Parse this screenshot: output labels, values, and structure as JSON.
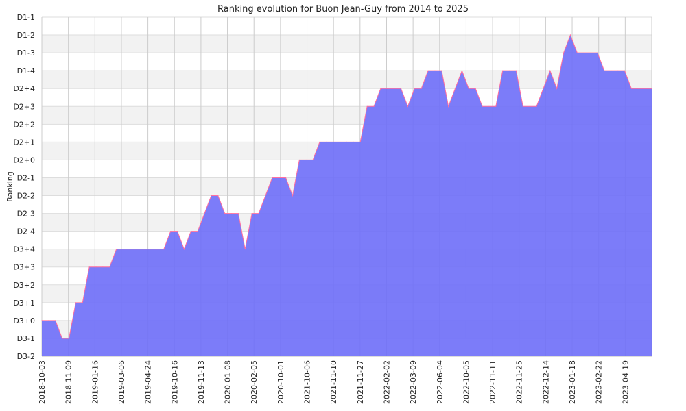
{
  "chart_data": {
    "type": "area",
    "title": "Ranking evolution for Buon Jean-Guy from 2014 to 2025",
    "xlabel": "",
    "ylabel": "Ranking",
    "y_categories": [
      "D3-2",
      "D3-1",
      "D3+0",
      "D3+1",
      "D3+2",
      "D3+3",
      "D3+4",
      "D2-4",
      "D2-3",
      "D2-2",
      "D2-1",
      "D2+0",
      "D2+1",
      "D2+2",
      "D2+3",
      "D2+4",
      "D1-4",
      "D1-3",
      "D1-2",
      "D1-1"
    ],
    "x_tick_labels": [
      "2018-10-03",
      "2018-11-09",
      "2019-01-16",
      "2019-03-06",
      "2019-04-24",
      "2019-10-16",
      "2019-11-13",
      "2020-01-08",
      "2020-02-05",
      "2020-10-01",
      "2021-10-06",
      "2021-11-10",
      "2021-11-27",
      "2022-02-02",
      "2022-03-09",
      "2022-06-04",
      "2022-10-05",
      "2022-11-11",
      "2022-11-25",
      "2022-12-14",
      "2023-01-18",
      "2023-02-22",
      "2023-04-19"
    ],
    "grid": true,
    "legend": "none",
    "colors": {
      "fill": "#6e6ef8",
      "line": "#ff6fa0",
      "band": "#f2f2f2",
      "grid": "#cccccc"
    },
    "series": [
      {
        "ranks": [
          "D3+0",
          "D3+0",
          "D3+0",
          "D3-1",
          "D3-1",
          "D3+1",
          "D3+1",
          "D3+3",
          "D3+3",
          "D3+3",
          "D3+3",
          "D3+4",
          "D3+4",
          "D3+4",
          "D3+4",
          "D3+4",
          "D3+4",
          "D3+4",
          "D3+4",
          "D2-4",
          "D2-4",
          "D3+4",
          "D2-4",
          "D2-4",
          "D2-3",
          "D2-2",
          "D2-2",
          "D2-3",
          "D2-3",
          "D2-3",
          "D3+4",
          "D2-3",
          "D2-3",
          "D2-2",
          "D2-1",
          "D2-1",
          "D2-1",
          "D2-2",
          "D2+0",
          "D2+0",
          "D2+0",
          "D2+1",
          "D2+1",
          "D2+1",
          "D2+1",
          "D2+1",
          "D2+1",
          "D2+1",
          "D2+3",
          "D2+3",
          "D2+4",
          "D2+4",
          "D2+4",
          "D2+4",
          "D2+3",
          "D2+4",
          "D2+4",
          "D1-4",
          "D1-4",
          "D1-4",
          "D2+3",
          "D2+4",
          "D1-4",
          "D2+4",
          "D2+4",
          "D2+3",
          "D2+3",
          "D2+3",
          "D1-4",
          "D1-4",
          "D1-4",
          "D2+3",
          "D2+3",
          "D2+3",
          "D2+4",
          "D1-4",
          "D2+4",
          "D1-3",
          "D1-2",
          "D1-3",
          "D1-3",
          "D1-3",
          "D1-3",
          "D1-4",
          "D1-4",
          "D1-4",
          "D1-4",
          "D2+4",
          "D2+4",
          "D2+4",
          "D2+4"
        ]
      }
    ]
  }
}
